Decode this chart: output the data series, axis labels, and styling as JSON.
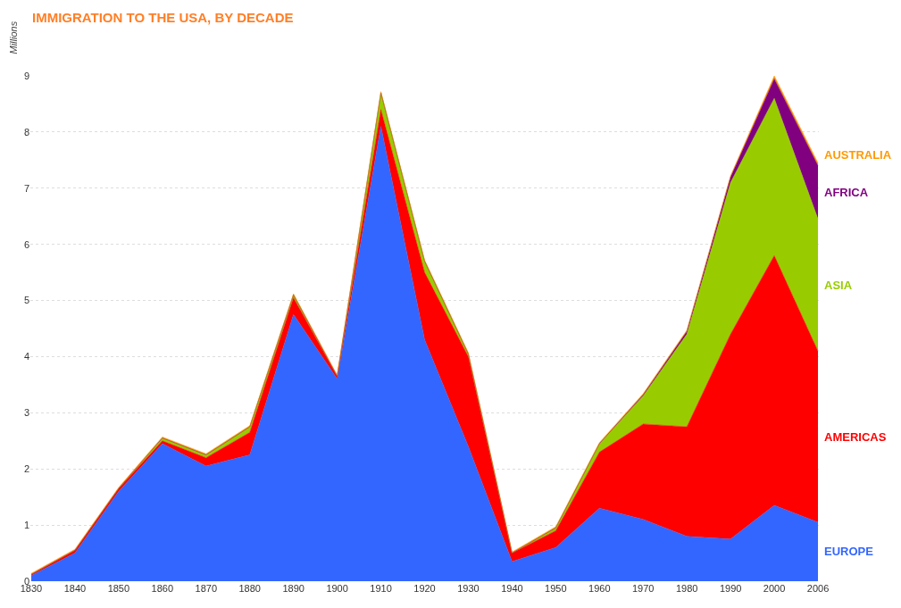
{
  "chart_data": {
    "type": "area",
    "stacked": true,
    "title": "IMMIGRATION TO THE USA, BY DECADE",
    "ylabel": "Millions",
    "categories": [
      "1830",
      "1840",
      "1850",
      "1860",
      "1870",
      "1880",
      "1890",
      "1900",
      "1910",
      "1920",
      "1930",
      "1940",
      "1950",
      "1960",
      "1970",
      "1980",
      "1990",
      "2000",
      "2006"
    ],
    "series": [
      {
        "name": "EUROPE",
        "color": "#3366ff",
        "values": [
          0.1,
          0.5,
          1.6,
          2.45,
          2.05,
          2.25,
          4.75,
          3.6,
          8.1,
          4.3,
          2.4,
          0.35,
          0.6,
          1.3,
          1.1,
          0.8,
          0.75,
          1.35,
          1.05
        ]
      },
      {
        "name": "AMERICAS",
        "color": "#ff0000",
        "values": [
          0.02,
          0.05,
          0.05,
          0.05,
          0.15,
          0.4,
          0.3,
          0.05,
          0.3,
          1.2,
          1.6,
          0.15,
          0.3,
          1.0,
          1.7,
          1.95,
          3.65,
          4.45,
          3.05
        ]
      },
      {
        "name": "ASIA",
        "color": "#99cc00",
        "values": [
          0,
          0,
          0,
          0.05,
          0.05,
          0.1,
          0.05,
          0,
          0.3,
          0.2,
          0.05,
          0,
          0.05,
          0.15,
          0.5,
          1.65,
          2.7,
          2.8,
          2.35
        ]
      },
      {
        "name": "AFRICA",
        "color": "#800080",
        "values": [
          0,
          0,
          0,
          0,
          0,
          0,
          0,
          0,
          0,
          0,
          0,
          0,
          0,
          0,
          0.02,
          0.05,
          0.1,
          0.35,
          0.95
        ]
      },
      {
        "name": "AUSTRALIA",
        "color": "#ff9900",
        "values": [
          0.02,
          0.02,
          0.02,
          0.02,
          0.02,
          0.02,
          0.02,
          0.02,
          0.02,
          0.02,
          0.02,
          0.02,
          0.02,
          0.02,
          0.02,
          0.02,
          0.02,
          0.05,
          0.05
        ]
      }
    ],
    "ylim": [
      0,
      9
    ],
    "yticks": [
      0,
      1,
      2,
      3,
      4,
      5,
      6,
      7,
      8,
      9
    ],
    "grid": "y",
    "legend": false
  }
}
